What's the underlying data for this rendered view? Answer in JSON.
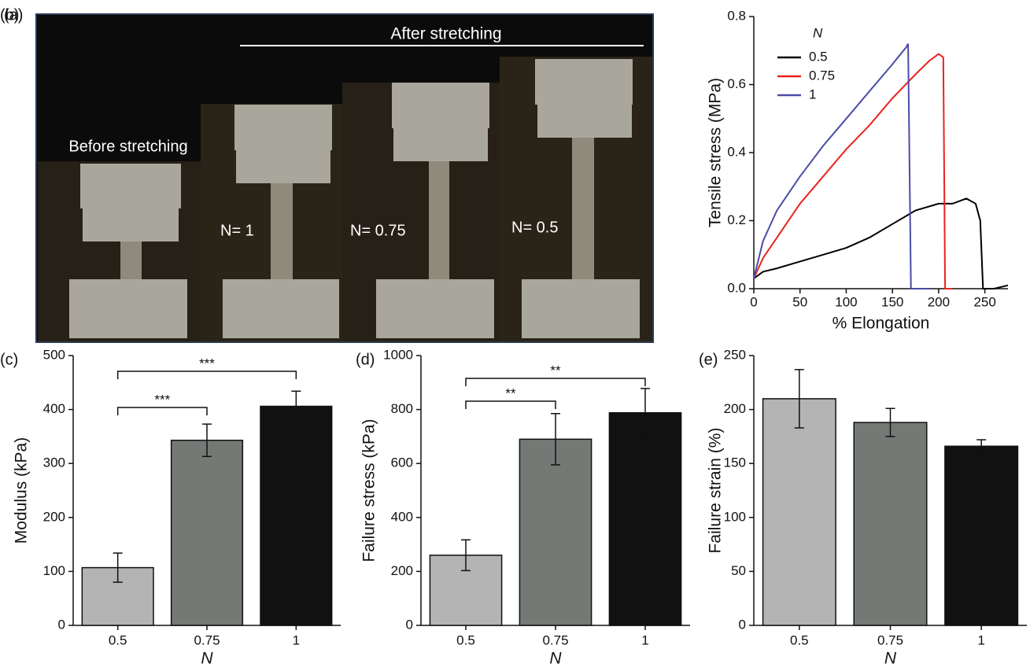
{
  "photo_panel": {
    "panel_label": "(a)",
    "heading": "After stretching",
    "texts": [
      "Before stretching",
      "N= 1",
      "N= 0.75",
      "N= 0.5"
    ]
  },
  "chart_data": [
    {
      "type": "line",
      "panel_label": "(b)",
      "xlabel": "% Elongation",
      "ylabel": "Tensile stress (MPa)",
      "xlim": [
        0,
        275
      ],
      "xticks": [
        0,
        50,
        100,
        150,
        200,
        250
      ],
      "ylim": [
        0,
        0.8
      ],
      "yticks": [
        {
          "value": 0,
          "label": "0.0"
        },
        0.2,
        0.4,
        0.6,
        0.8
      ],
      "legend_title": "N",
      "legend": "upper left",
      "series": [
        {
          "name": "0.5",
          "color": "#000000",
          "x": [
            0,
            10,
            25,
            50,
            75,
            100,
            125,
            150,
            175,
            200,
            215,
            230,
            240,
            245,
            248,
            260,
            275
          ],
          "values": [
            0.03,
            0.05,
            0.06,
            0.08,
            0.1,
            0.12,
            0.15,
            0.19,
            0.23,
            0.25,
            0.25,
            0.265,
            0.25,
            0.2,
            0,
            0,
            0.01
          ]
        },
        {
          "name": "0.75",
          "color": "#e8231f",
          "x": [
            0,
            10,
            25,
            50,
            75,
            100,
            125,
            150,
            175,
            190,
            200,
            205,
            207,
            215
          ],
          "values": [
            0.03,
            0.09,
            0.15,
            0.25,
            0.33,
            0.41,
            0.48,
            0.56,
            0.63,
            0.67,
            0.69,
            0.68,
            0,
            0
          ]
        },
        {
          "name": "1",
          "color": "#4b4ba8",
          "x": [
            0,
            10,
            25,
            50,
            75,
            100,
            125,
            150,
            165,
            167,
            170,
            175,
            190
          ],
          "values": [
            0.03,
            0.14,
            0.23,
            0.33,
            0.42,
            0.5,
            0.58,
            0.66,
            0.71,
            0.72,
            0,
            0,
            0
          ]
        }
      ]
    },
    {
      "type": "bar",
      "panel_label": "(c)",
      "xlabel": "N",
      "ylabel": "Modulus (kPa)",
      "categories": [
        "0.5",
        "0.75",
        "1"
      ],
      "values": [
        107,
        343,
        406
      ],
      "errors": [
        27,
        30,
        28
      ],
      "colors": [
        "#b4b4b4",
        "#757976",
        "#111111"
      ],
      "ylim": [
        0,
        500
      ],
      "yticks": [
        0,
        100,
        200,
        300,
        400,
        500
      ],
      "annotations": [
        "***",
        "***"
      ]
    },
    {
      "type": "bar",
      "panel_label": "(d)",
      "xlabel": "N",
      "ylabel": "Failure stress (kPa)",
      "categories": [
        "0.5",
        "0.75",
        "1"
      ],
      "values": [
        260,
        690,
        788
      ],
      "errors": [
        57,
        95,
        90
      ],
      "colors": [
        "#b4b4b4",
        "#757976",
        "#111111"
      ],
      "ylim": [
        0,
        1000
      ],
      "yticks": [
        0,
        200,
        400,
        600,
        800,
        1000
      ],
      "annotations": [
        "**",
        "**"
      ]
    },
    {
      "type": "bar",
      "panel_label": "(e)",
      "xlabel": "N",
      "ylabel": "Failure strain (%)",
      "categories": [
        "0.5",
        "0.75",
        "1"
      ],
      "values": [
        210,
        188,
        166
      ],
      "errors": [
        27,
        13,
        6
      ],
      "colors": [
        "#b4b4b4",
        "#757976",
        "#111111"
      ],
      "ylim": [
        0,
        250
      ],
      "yticks": [
        0,
        50,
        100,
        150,
        200,
        250
      ]
    }
  ]
}
